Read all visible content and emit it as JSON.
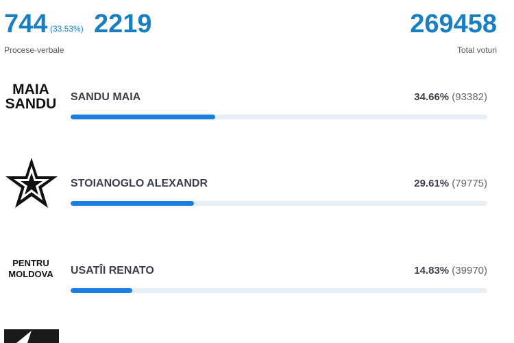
{
  "header": {
    "processed": 744,
    "processed_pct": {
      "value": 33.53,
      "label": "(33.53%)"
    },
    "total_reports": 2219,
    "reports_label": "Procese-verbale",
    "total_votes": 269458,
    "votes_label": "Total voturi"
  },
  "candidates": [
    {
      "logo": [
        "MAIA",
        "SANDU"
      ],
      "name": "SANDU MAIA",
      "percent": {
        "value": 34.66,
        "label": "34.66%"
      },
      "votes": {
        "value": 93382,
        "label": "(93382)"
      }
    },
    {
      "name": "STOIANOGLO ALEXANDR",
      "percent": {
        "value": 29.61,
        "label": "29.61%"
      },
      "votes": {
        "value": 79775,
        "label": "(79775)"
      }
    },
    {
      "logo": [
        "PENTRU",
        "MOLDOVA"
      ],
      "name": "USATÎI RENATO",
      "percent": {
        "value": 14.83,
        "label": "14.83%"
      },
      "votes": {
        "value": 39970,
        "label": "(39970)"
      }
    }
  ]
}
